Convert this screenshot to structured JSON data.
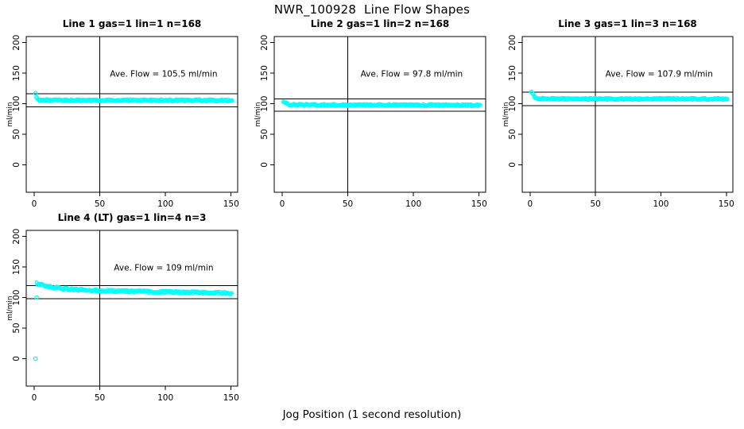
{
  "figure": {
    "title": "NWR_100928  Line Flow Shapes",
    "xlabel": "Jog Position (1 second resolution)",
    "ylabel": "ml/min",
    "background": "#FFFFFF",
    "point_color": "#00FFFF",
    "line_color": "#000000",
    "marker": "open-circle"
  },
  "chart_data": [
    {
      "type": "scatter",
      "title": "Line 1 gas=1 lin=1 n=168",
      "ave_flow": 105.5,
      "ave_flow_label": "Ave. Flow =  105.5  ml/min",
      "n": 168,
      "xlim": [
        -6,
        155
      ],
      "ylim": [
        -45,
        210
      ],
      "xticks": [
        0,
        50,
        100,
        150
      ],
      "yticks": [
        0,
        50,
        100,
        150,
        200
      ],
      "vline_x": 50,
      "hlines": [
        116.1,
        94.9
      ],
      "x_range": [
        1,
        151
      ],
      "jitter": 1.4,
      "profile": [
        [
          1,
          117
        ],
        [
          1.5,
          113
        ],
        [
          2,
          109
        ],
        [
          3,
          107
        ],
        [
          5,
          106.2
        ],
        [
          10,
          105.7
        ],
        [
          30,
          105.5
        ],
        [
          60,
          105.5
        ],
        [
          90,
          105.7
        ],
        [
          120,
          105.5
        ],
        [
          151,
          105.4
        ]
      ],
      "outliers": []
    },
    {
      "type": "scatter",
      "title": "Line 2 gas=1 lin=2 n=168",
      "ave_flow": 97.8,
      "ave_flow_label": "Ave. Flow =  97.8  ml/min",
      "n": 168,
      "xlim": [
        -6,
        155
      ],
      "ylim": [
        -45,
        210
      ],
      "xticks": [
        0,
        50,
        100,
        150
      ],
      "yticks": [
        0,
        50,
        100,
        150,
        200
      ],
      "vline_x": 50,
      "hlines": [
        107.6,
        88.0
      ],
      "x_range": [
        1,
        151
      ],
      "jitter": 1.3,
      "profile": [
        [
          1,
          104
        ],
        [
          2,
          102
        ],
        [
          3,
          100.5
        ],
        [
          5,
          99
        ],
        [
          8,
          98.3
        ],
        [
          20,
          98
        ],
        [
          60,
          97.8
        ],
        [
          100,
          97.8
        ],
        [
          130,
          97.6
        ],
        [
          151,
          97.4
        ]
      ],
      "outliers": []
    },
    {
      "type": "scatter",
      "title": "Line 3 gas=1 lin=3 n=168",
      "ave_flow": 107.9,
      "ave_flow_label": "Ave. Flow =  107.9  ml/min",
      "n": 168,
      "xlim": [
        -6,
        155
      ],
      "ylim": [
        -45,
        210
      ],
      "xticks": [
        0,
        50,
        100,
        150
      ],
      "yticks": [
        0,
        50,
        100,
        150,
        200
      ],
      "vline_x": 50,
      "hlines": [
        118.7,
        97.1
      ],
      "x_range": [
        1,
        151
      ],
      "jitter": 1.2,
      "profile": [
        [
          1,
          119
        ],
        [
          2,
          117
        ],
        [
          3,
          113
        ],
        [
          4,
          110.5
        ],
        [
          6,
          108.8
        ],
        [
          10,
          108.2
        ],
        [
          40,
          107.9
        ],
        [
          80,
          108
        ],
        [
          120,
          108
        ],
        [
          151,
          107.9
        ]
      ],
      "outliers": []
    },
    {
      "type": "scatter",
      "title": "Line 4 (LT) gas=1 lin=4 n=3",
      "ave_flow": 109,
      "ave_flow_label": "Ave. Flow =  109  ml/min",
      "n": 3,
      "xlim": [
        -6,
        155
      ],
      "ylim": [
        -45,
        210
      ],
      "xticks": [
        0,
        50,
        100,
        150
      ],
      "yticks": [
        0,
        50,
        100,
        150,
        200
      ],
      "vline_x": 50,
      "hlines": [
        119.9,
        98.1
      ],
      "x_range": [
        2,
        151
      ],
      "jitter": 1.6,
      "profile": [
        [
          2,
          123
        ],
        [
          4,
          122
        ],
        [
          7,
          120
        ],
        [
          12,
          117.5
        ],
        [
          20,
          115
        ],
        [
          30,
          113
        ],
        [
          40,
          112
        ],
        [
          50,
          111.5
        ],
        [
          65,
          110.5
        ],
        [
          80,
          110
        ],
        [
          100,
          109.3
        ],
        [
          120,
          108.5
        ],
        [
          135,
          108
        ],
        [
          151,
          107
        ]
      ],
      "outliers": [
        [
          1,
          0
        ],
        [
          2,
          100
        ]
      ]
    }
  ]
}
